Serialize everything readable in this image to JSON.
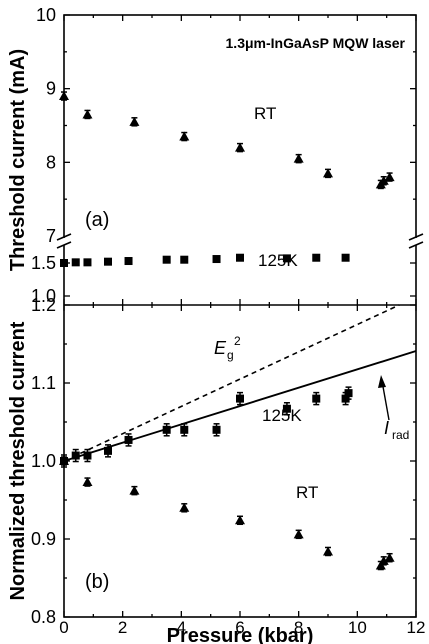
{
  "chart_data": [
    {
      "type": "scatter",
      "panel_label": "(a)",
      "annotation": "1.3μm-InGaAsP MQW laser",
      "ylabel": "Threshold current (mA)",
      "axis_break": true,
      "upper_ylim": [
        7,
        10
      ],
      "upper_yticks": [
        "7",
        "8",
        "9",
        "10"
      ],
      "lower_ylim": [
        1.0,
        2.0
      ],
      "lower_yticks": [
        "1.0",
        "1.5"
      ],
      "xlim": [
        0,
        12
      ],
      "series": [
        {
          "name": "RT",
          "marker": "triangle",
          "x": [
            0,
            0.8,
            2.4,
            4.1,
            6.0,
            8.0,
            9.0,
            10.8,
            10.9,
            11.1
          ],
          "y": [
            8.9,
            8.65,
            8.55,
            8.35,
            8.2,
            8.05,
            7.85,
            7.7,
            7.75,
            7.8
          ]
        },
        {
          "name": "125K",
          "marker": "square",
          "x": [
            0,
            0.4,
            0.8,
            1.5,
            2.2,
            3.5,
            4.1,
            5.2,
            6.0,
            7.6,
            8.6,
            9.6
          ],
          "y": [
            1.5,
            1.51,
            1.51,
            1.52,
            1.53,
            1.55,
            1.55,
            1.56,
            1.58,
            1.57,
            1.58,
            1.58
          ]
        }
      ]
    },
    {
      "type": "scatter",
      "panel_label": "(b)",
      "ylabel": "Normalized threshold current",
      "xlabel": "Pressure (kbar)",
      "xlim": [
        0,
        12
      ],
      "ylim": [
        0.8,
        1.2
      ],
      "xticks": [
        "0",
        "2",
        "4",
        "6",
        "8",
        "10",
        "12"
      ],
      "yticks": [
        "0.8",
        "0.9",
        "1.0",
        "1.1",
        "1.2"
      ],
      "series": [
        {
          "name": "125K",
          "marker": "square",
          "x": [
            0,
            0.4,
            0.8,
            1.5,
            2.2,
            3.5,
            4.1,
            5.2,
            6.0,
            7.6,
            8.6,
            9.6,
            9.7
          ],
          "y": [
            1.0,
            1.007,
            1.007,
            1.013,
            1.027,
            1.04,
            1.04,
            1.04,
            1.08,
            1.067,
            1.08,
            1.08,
            1.087
          ]
        },
        {
          "name": "RT",
          "marker": "triangle",
          "x": [
            0,
            0.8,
            2.4,
            4.1,
            6.0,
            8.0,
            9.0,
            10.8,
            10.9,
            11.1
          ],
          "y": [
            1.0,
            0.973,
            0.962,
            0.94,
            0.924,
            0.906,
            0.884,
            0.866,
            0.872,
            0.876
          ]
        }
      ],
      "lines": [
        {
          "name": "Eg2",
          "label_main": "E",
          "label_sub": "g",
          "label_sup": "2",
          "style": "dashed",
          "x": [
            0,
            12
          ],
          "y": [
            1.0,
            1.21
          ]
        },
        {
          "name": "Irad",
          "label_main": "I",
          "label_sub": "rad",
          "style": "solid",
          "x": [
            0,
            12
          ],
          "y": [
            1.0,
            1.141
          ]
        }
      ]
    }
  ]
}
